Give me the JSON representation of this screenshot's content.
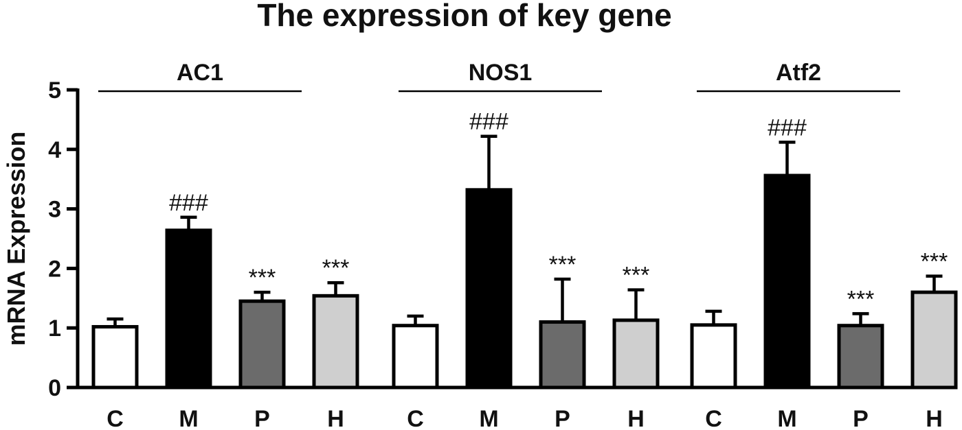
{
  "chart_data": {
    "type": "bar",
    "title": "The expression of key gene",
    "xlabel": "",
    "ylabel": "mRNA Expression",
    "ylim": [
      0,
      5
    ],
    "yticks": [
      "0",
      "1",
      "2",
      "3",
      "4",
      "5"
    ],
    "grid": false,
    "legend": "none",
    "categories": [
      "C",
      "M",
      "P",
      "H"
    ],
    "category_colors": [
      "#ffffff",
      "#000000",
      "#6b6b6b",
      "#cfcfcf"
    ],
    "groups": [
      {
        "name": "AC1",
        "values": [
          1.02,
          2.64,
          1.45,
          1.54
        ],
        "errors": [
          0.13,
          0.22,
          0.15,
          0.22
        ],
        "annotations": [
          "",
          "###",
          "***",
          "***"
        ]
      },
      {
        "name": "NOS1",
        "values": [
          1.04,
          3.32,
          1.1,
          1.13
        ],
        "errors": [
          0.16,
          0.9,
          0.72,
          0.51
        ],
        "annotations": [
          "",
          "###",
          "***",
          "***"
        ]
      },
      {
        "name": "Atf2",
        "values": [
          1.05,
          3.56,
          1.04,
          1.6
        ],
        "errors": [
          0.23,
          0.56,
          0.2,
          0.27
        ],
        "annotations": [
          "",
          "###",
          "***",
          "***"
        ]
      }
    ]
  }
}
